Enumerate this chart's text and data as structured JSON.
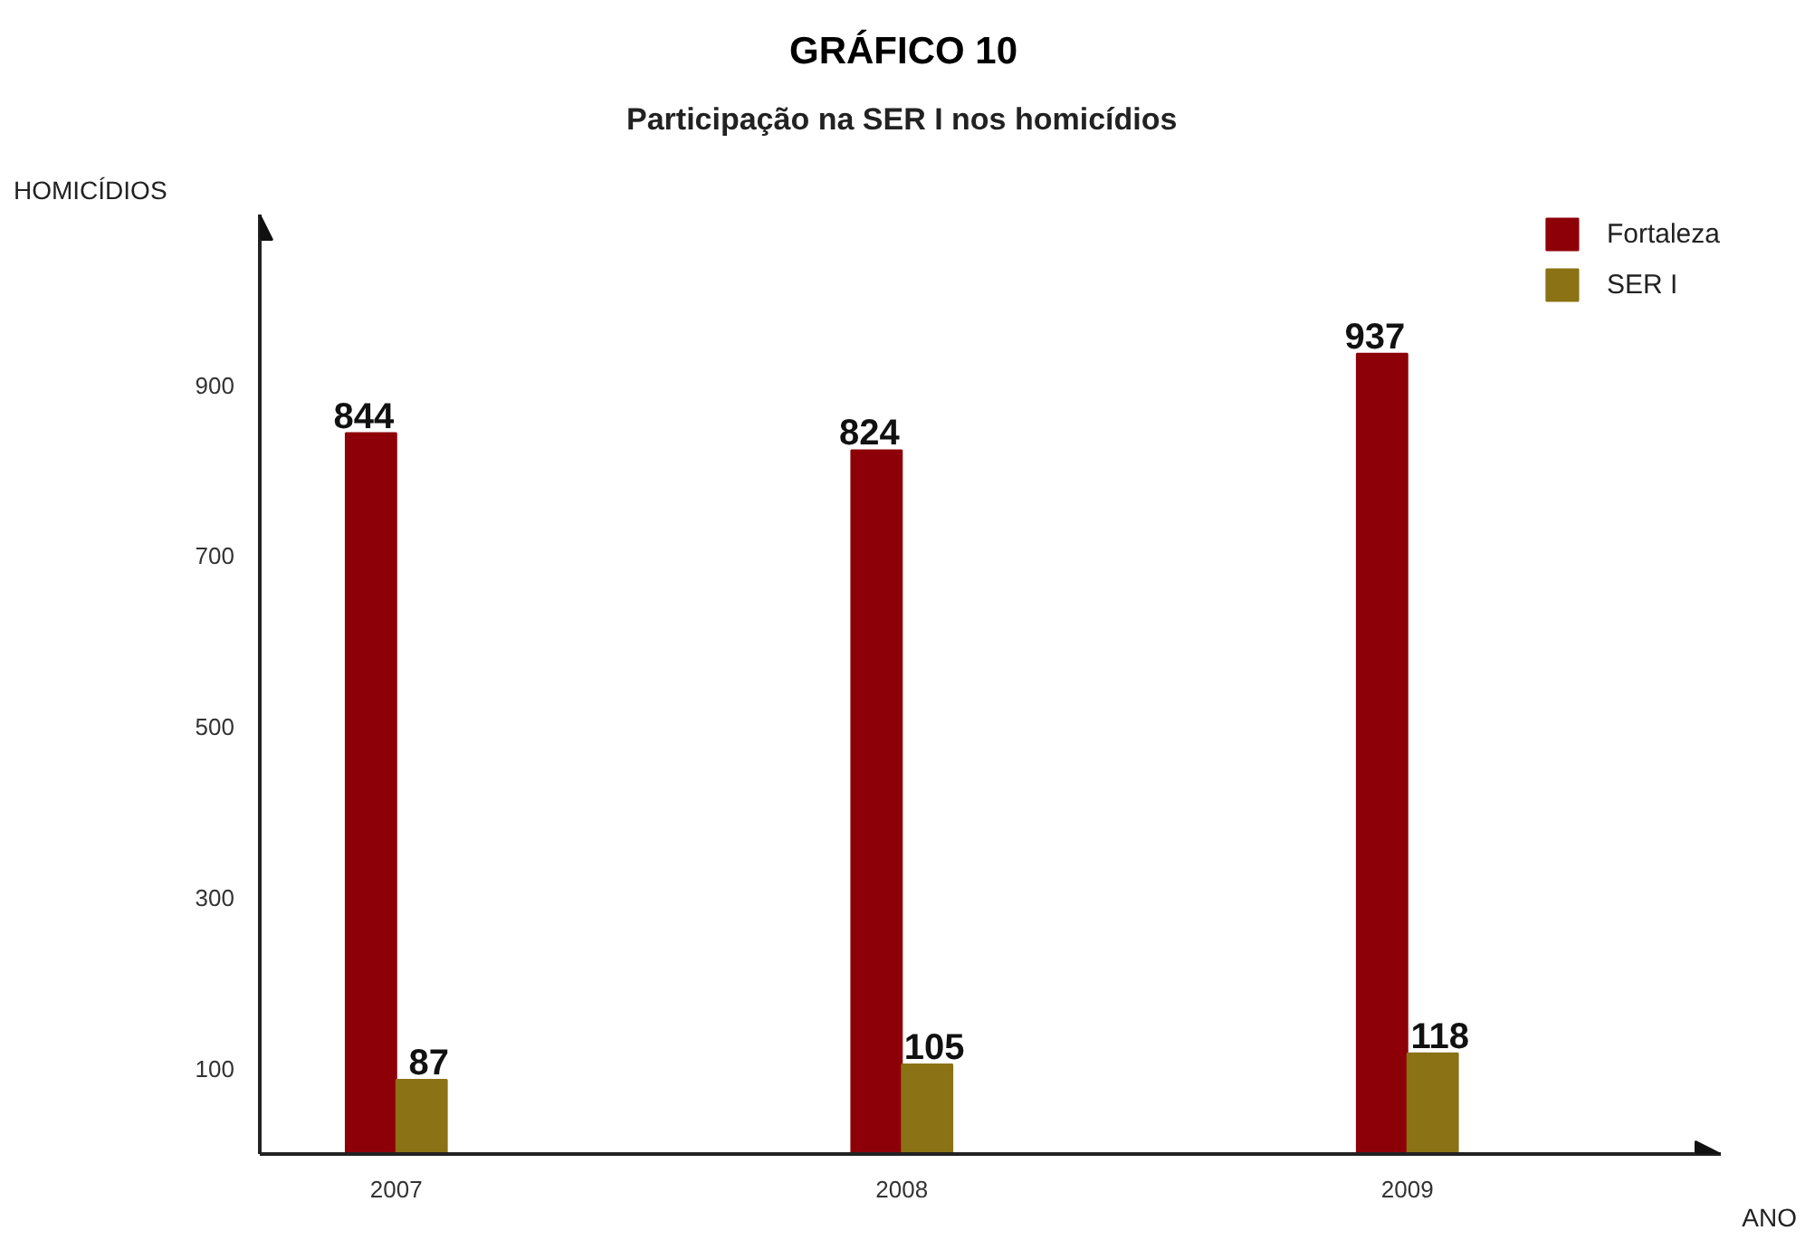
{
  "chart_data": {
    "type": "bar",
    "title": "GRÁFICO 10",
    "subtitle": "Participação na SER I nos homicídios",
    "xlabel": "ANO",
    "ylabel": "HOMICÍDIOS",
    "categories": [
      "2007",
      "2008",
      "2009"
    ],
    "series": [
      {
        "name": "Fortaleza",
        "color": "#8e0008",
        "values": [
          844,
          824,
          937
        ]
      },
      {
        "name": "SER I",
        "color": "#8a7215",
        "values": [
          87,
          105,
          118
        ]
      }
    ],
    "ylim": [
      0,
      1100
    ],
    "yticks": [
      100,
      300,
      500,
      700,
      900
    ],
    "data_labels": true,
    "legend": "top right",
    "grid": false
  }
}
